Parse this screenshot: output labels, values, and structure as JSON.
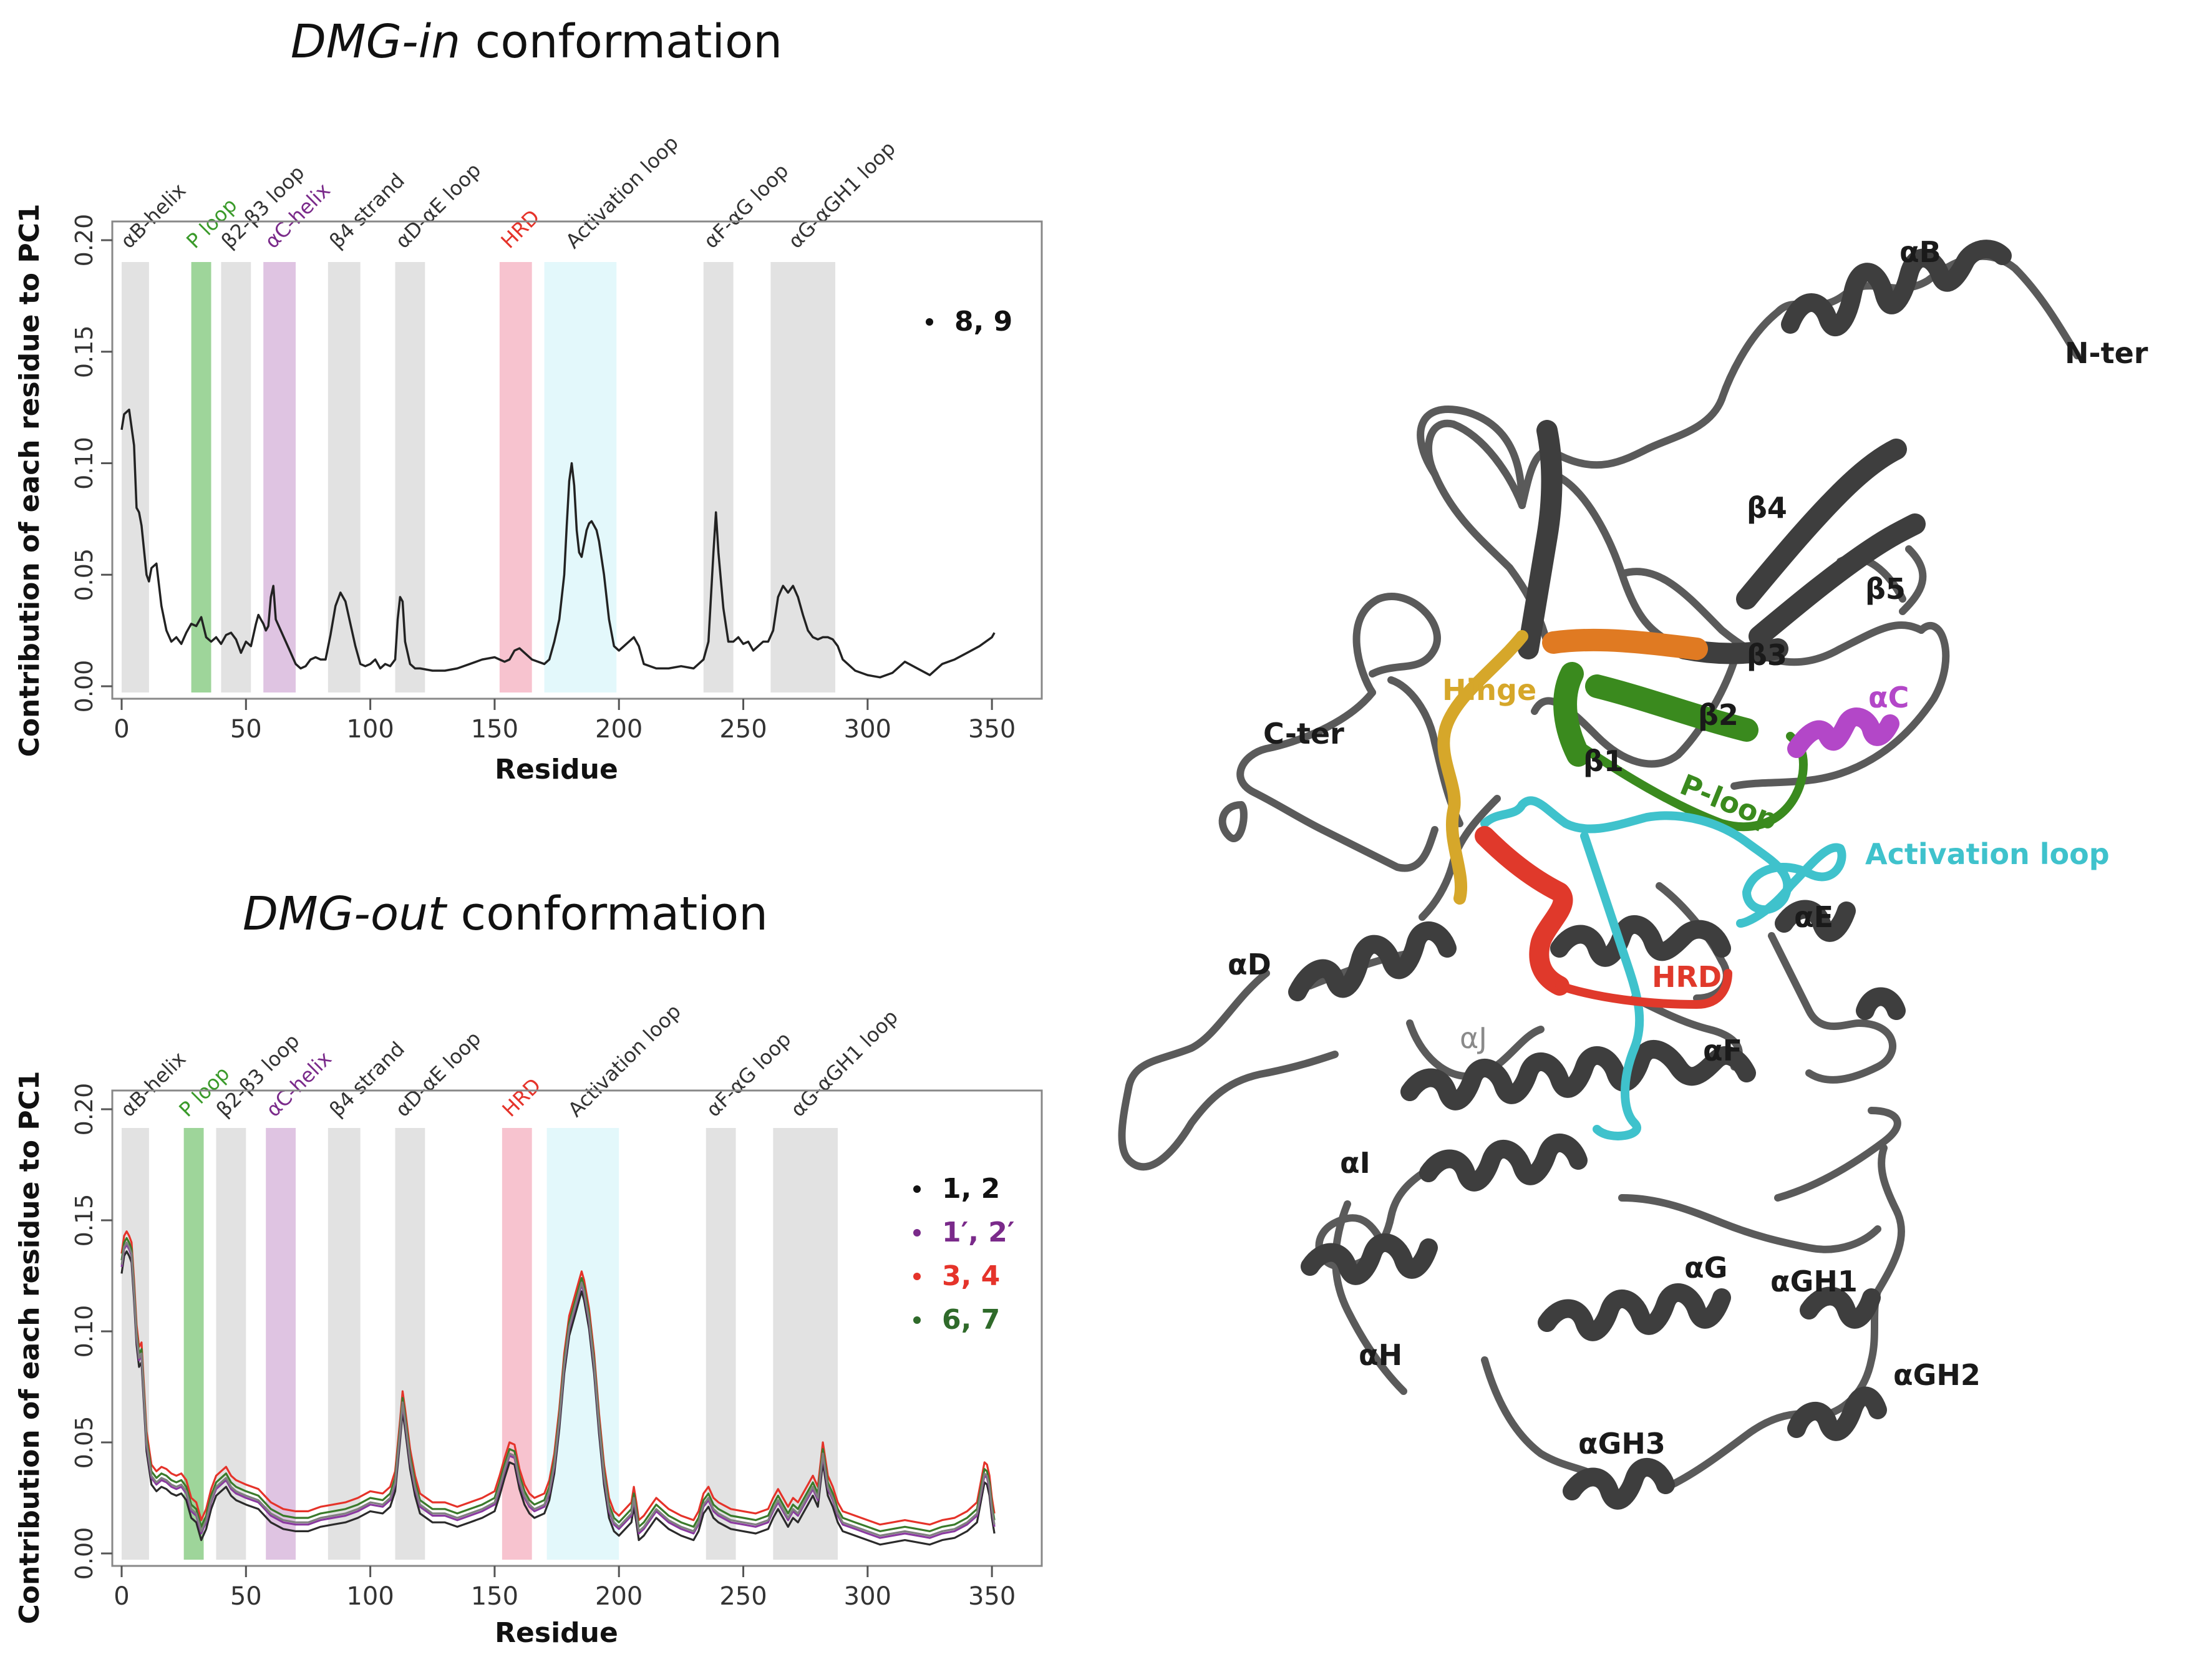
{
  "chart_data": [
    {
      "type": "line",
      "title": "DMG-in conformation",
      "title_italic": "DMG-in",
      "title_rest": " conformation",
      "xlabel": "Residue",
      "ylabel": "Contribution of each residue to PC1",
      "xlim": [
        0,
        360
      ],
      "ylim": [
        0,
        0.2
      ],
      "xticks": [
        "0",
        "50",
        "100",
        "150",
        "200",
        "250",
        "300",
        "350"
      ],
      "yticks": [
        "0.00",
        "0.05",
        "0.10",
        "0.15",
        "0.20"
      ],
      "regions": [
        {
          "label": "αB-helix",
          "start": 0,
          "end": 11,
          "color": "#e2e2e2",
          "label_color": "#333333"
        },
        {
          "label": "P loop",
          "start": 28,
          "end": 36,
          "color": "#9ed59a",
          "label_color": "#3a9a2a"
        },
        {
          "label": "β2-β3 loop",
          "start": 40,
          "end": 52,
          "color": "#e2e2e2",
          "label_color": "#333333"
        },
        {
          "label": "αC-helix",
          "start": 57,
          "end": 70,
          "color": "#dfc4e2",
          "label_color": "#7a2a8a"
        },
        {
          "label": "β4 strand",
          "start": 83,
          "end": 96,
          "color": "#e2e2e2",
          "label_color": "#333333"
        },
        {
          "label": "αD-αE loop",
          "start": 110,
          "end": 122,
          "color": "#e2e2e2",
          "label_color": "#333333"
        },
        {
          "label": "HRD",
          "start": 152,
          "end": 165,
          "color": "#f7c3cf",
          "label_color": "#e5332a"
        },
        {
          "label": "Activation loop",
          "start": 170,
          "end": 199,
          "color": "#e3f8fb",
          "label_color": "#333333"
        },
        {
          "label": "αF-αG loop",
          "start": 234,
          "end": 246,
          "color": "#e2e2e2",
          "label_color": "#333333"
        },
        {
          "label": "αG-αGH1 loop",
          "start": 261,
          "end": 287,
          "color": "#e2e2e2",
          "label_color": "#333333"
        }
      ],
      "legend": [
        {
          "name": "8, 9",
          "color": "#111111"
        }
      ],
      "series": [
        {
          "name": "8, 9",
          "color": "#222222",
          "x": [
            0,
            1,
            3,
            5,
            6,
            7,
            8,
            10,
            11,
            12,
            14,
            16,
            18,
            20,
            22,
            24,
            26,
            28,
            30,
            32,
            34,
            36,
            38,
            40,
            42,
            44,
            46,
            48,
            50,
            52,
            54,
            55,
            56,
            57,
            58,
            59,
            60,
            61,
            62,
            64,
            66,
            68,
            70,
            72,
            74,
            76,
            78,
            80,
            82,
            84,
            86,
            88,
            90,
            92,
            94,
            96,
            98,
            100,
            102,
            104,
            106,
            108,
            110,
            111,
            112,
            113,
            114,
            116,
            118,
            120,
            125,
            130,
            135,
            140,
            145,
            150,
            152,
            154,
            156,
            158,
            160,
            165,
            170,
            172,
            174,
            176,
            178,
            179,
            180,
            181,
            182,
            183,
            184,
            185,
            186,
            187,
            188,
            189,
            190,
            191,
            192,
            194,
            196,
            198,
            200,
            202,
            204,
            206,
            208,
            210,
            215,
            220,
            225,
            230,
            232,
            234,
            236,
            237,
            238,
            239,
            240,
            242,
            244,
            246,
            248,
            250,
            252,
            254,
            256,
            258,
            260,
            262,
            264,
            266,
            268,
            270,
            272,
            274,
            276,
            278,
            280,
            282,
            284,
            286,
            288,
            290,
            295,
            300,
            305,
            310,
            315,
            320,
            325,
            330,
            335,
            340,
            345,
            350,
            351
          ],
          "y": [
            0.115,
            0.122,
            0.124,
            0.108,
            0.08,
            0.078,
            0.072,
            0.05,
            0.047,
            0.053,
            0.055,
            0.036,
            0.025,
            0.02,
            0.022,
            0.019,
            0.024,
            0.028,
            0.027,
            0.031,
            0.022,
            0.02,
            0.022,
            0.019,
            0.023,
            0.024,
            0.021,
            0.015,
            0.02,
            0.018,
            0.028,
            0.032,
            0.03,
            0.028,
            0.025,
            0.027,
            0.04,
            0.045,
            0.03,
            0.025,
            0.02,
            0.015,
            0.01,
            0.008,
            0.009,
            0.012,
            0.013,
            0.012,
            0.012,
            0.023,
            0.036,
            0.042,
            0.038,
            0.028,
            0.018,
            0.01,
            0.009,
            0.01,
            0.012,
            0.008,
            0.01,
            0.009,
            0.012,
            0.03,
            0.04,
            0.038,
            0.02,
            0.01,
            0.008,
            0.008,
            0.007,
            0.007,
            0.008,
            0.01,
            0.012,
            0.013,
            0.012,
            0.011,
            0.012,
            0.016,
            0.017,
            0.012,
            0.01,
            0.012,
            0.02,
            0.03,
            0.05,
            0.072,
            0.092,
            0.1,
            0.09,
            0.07,
            0.06,
            0.058,
            0.064,
            0.07,
            0.073,
            0.074,
            0.072,
            0.07,
            0.065,
            0.05,
            0.03,
            0.018,
            0.016,
            0.018,
            0.02,
            0.022,
            0.018,
            0.01,
            0.008,
            0.008,
            0.009,
            0.008,
            0.01,
            0.012,
            0.02,
            0.04,
            0.06,
            0.078,
            0.06,
            0.035,
            0.02,
            0.02,
            0.022,
            0.019,
            0.02,
            0.016,
            0.018,
            0.02,
            0.02,
            0.025,
            0.04,
            0.045,
            0.042,
            0.045,
            0.04,
            0.032,
            0.025,
            0.022,
            0.021,
            0.022,
            0.022,
            0.021,
            0.018,
            0.012,
            0.007,
            0.005,
            0.004,
            0.006,
            0.011,
            0.008,
            0.005,
            0.01,
            0.012,
            0.015,
            0.018,
            0.022,
            0.024
          ]
        }
      ]
    },
    {
      "type": "line",
      "title": "DMG-out conformation",
      "title_italic": "DMG-out",
      "title_rest": " conformation",
      "xlabel": "Residue",
      "ylabel": "Contribution of each residue to PC1",
      "xlim": [
        0,
        360
      ],
      "ylim": [
        0,
        0.2
      ],
      "xticks": [
        "0",
        "50",
        "100",
        "150",
        "200",
        "250",
        "300",
        "350"
      ],
      "yticks": [
        "0.00",
        "0.05",
        "0.10",
        "0.15",
        "0.20"
      ],
      "regions": [
        {
          "label": "αB-helix",
          "start": 0,
          "end": 11,
          "color": "#e2e2e2",
          "label_color": "#333333"
        },
        {
          "label": "P loop",
          "start": 25,
          "end": 33,
          "color": "#9ed59a",
          "label_color": "#3a9a2a"
        },
        {
          "label": "β2-β3 loop",
          "start": 38,
          "end": 50,
          "color": "#e2e2e2",
          "label_color": "#333333"
        },
        {
          "label": "αC-helix",
          "start": 58,
          "end": 70,
          "color": "#dfc4e2",
          "label_color": "#7a2a8a"
        },
        {
          "label": "β4 strand",
          "start": 83,
          "end": 96,
          "color": "#e2e2e2",
          "label_color": "#333333"
        },
        {
          "label": "αD-αE loop",
          "start": 110,
          "end": 122,
          "color": "#e2e2e2",
          "label_color": "#333333"
        },
        {
          "label": "HRD",
          "start": 153,
          "end": 165,
          "color": "#f7c3cf",
          "label_color": "#e5332a"
        },
        {
          "label": "Activation loop",
          "start": 171,
          "end": 200,
          "color": "#e3f8fb",
          "label_color": "#333333"
        },
        {
          "label": "αF-αG loop",
          "start": 235,
          "end": 247,
          "color": "#e2e2e2",
          "label_color": "#333333"
        },
        {
          "label": "αG-αGH1 loop",
          "start": 262,
          "end": 288,
          "color": "#e2e2e2",
          "label_color": "#333333"
        }
      ],
      "legend": [
        {
          "name": "1, 2",
          "color": "#111111"
        },
        {
          "name": "1′, 2′",
          "color": "#7a2a8a"
        },
        {
          "name": "3, 4",
          "color": "#e5332a"
        },
        {
          "name": "6, 7",
          "color": "#2f6a2a"
        }
      ],
      "series_x": [
        0,
        1,
        2,
        3,
        4,
        5,
        6,
        7,
        8,
        9,
        10,
        12,
        14,
        16,
        18,
        20,
        22,
        24,
        26,
        28,
        30,
        32,
        34,
        36,
        38,
        40,
        42,
        44,
        46,
        48,
        50,
        55,
        60,
        65,
        70,
        75,
        80,
        85,
        90,
        95,
        100,
        105,
        108,
        110,
        112,
        113,
        114,
        116,
        118,
        120,
        125,
        130,
        135,
        140,
        145,
        150,
        152,
        154,
        156,
        158,
        160,
        162,
        164,
        166,
        170,
        172,
        174,
        176,
        178,
        180,
        182,
        184,
        185,
        186,
        188,
        190,
        192,
        194,
        196,
        198,
        200,
        205,
        206,
        207,
        208,
        210,
        215,
        220,
        225,
        230,
        232,
        234,
        236,
        238,
        240,
        245,
        250,
        255,
        260,
        262,
        264,
        266,
        268,
        270,
        272,
        274,
        276,
        278,
        280,
        282,
        284,
        286,
        288,
        290,
        295,
        300,
        305,
        310,
        315,
        320,
        325,
        330,
        335,
        340,
        344,
        346,
        347,
        348,
        349,
        350,
        351
      ],
      "series_base": [
        0.13,
        0.138,
        0.14,
        0.138,
        0.135,
        0.118,
        0.098,
        0.088,
        0.09,
        0.07,
        0.05,
        0.035,
        0.032,
        0.034,
        0.033,
        0.031,
        0.03,
        0.031,
        0.028,
        0.02,
        0.018,
        0.01,
        0.015,
        0.024,
        0.03,
        0.032,
        0.034,
        0.03,
        0.028,
        0.027,
        0.026,
        0.024,
        0.018,
        0.015,
        0.014,
        0.014,
        0.016,
        0.017,
        0.018,
        0.02,
        0.023,
        0.022,
        0.025,
        0.032,
        0.055,
        0.068,
        0.06,
        0.042,
        0.03,
        0.022,
        0.018,
        0.018,
        0.016,
        0.018,
        0.02,
        0.023,
        0.03,
        0.038,
        0.045,
        0.044,
        0.033,
        0.026,
        0.022,
        0.02,
        0.022,
        0.028,
        0.04,
        0.06,
        0.085,
        0.102,
        0.11,
        0.118,
        0.122,
        0.118,
        0.105,
        0.085,
        0.058,
        0.035,
        0.02,
        0.014,
        0.012,
        0.018,
        0.025,
        0.018,
        0.01,
        0.012,
        0.02,
        0.015,
        0.012,
        0.01,
        0.014,
        0.022,
        0.025,
        0.02,
        0.018,
        0.015,
        0.014,
        0.013,
        0.015,
        0.02,
        0.024,
        0.02,
        0.016,
        0.02,
        0.018,
        0.022,
        0.026,
        0.03,
        0.025,
        0.045,
        0.03,
        0.025,
        0.018,
        0.014,
        0.012,
        0.01,
        0.008,
        0.009,
        0.01,
        0.009,
        0.008,
        0.01,
        0.011,
        0.014,
        0.018,
        0.03,
        0.036,
        0.035,
        0.03,
        0.02,
        0.013
      ],
      "series": [
        {
          "name": "1, 2",
          "color": "#2b2b2b",
          "offset": -0.004
        },
        {
          "name": "1′, 2′",
          "color": "#8a3aa0",
          "offset": -0.001
        },
        {
          "name": "3, 4",
          "color": "#e5332a",
          "offset": 0.005
        },
        {
          "name": "6, 7",
          "color": "#3a7a2a",
          "offset": 0.002
        },
        {
          "name": "",
          "color": "#808080",
          "offset": 0.0
        }
      ]
    }
  ],
  "structure": {
    "labels": {
      "aB": "αB",
      "nter": "N-ter",
      "b4": "β4",
      "b5": "β5",
      "b3": "β3",
      "hinge": "Hinge",
      "cter": "C-ter",
      "b2": "β2",
      "ac": "αC",
      "b1": "β1",
      "ploop": "P-loop",
      "actloop": "Activation loop",
      "ae": "αE",
      "ad": "αD",
      "hrd": "HRD",
      "aj": "αJ",
      "af": "αF",
      "ai": "αI",
      "ag": "αG",
      "agh1": "αGH1",
      "ah": "αH",
      "agh2": "αGH2",
      "agh3": "αGH3"
    },
    "colors": {
      "backbone": "#4a4a4a",
      "hinge": "#d6a72a",
      "ploop": "#3a8a1e",
      "b3": "#e07a22",
      "ac": "#b347c8",
      "actloop": "#3fc2cc",
      "hrd": "#e0392b",
      "label_dark": "#1a1a1a",
      "label_gray": "#8a8a8a"
    }
  }
}
